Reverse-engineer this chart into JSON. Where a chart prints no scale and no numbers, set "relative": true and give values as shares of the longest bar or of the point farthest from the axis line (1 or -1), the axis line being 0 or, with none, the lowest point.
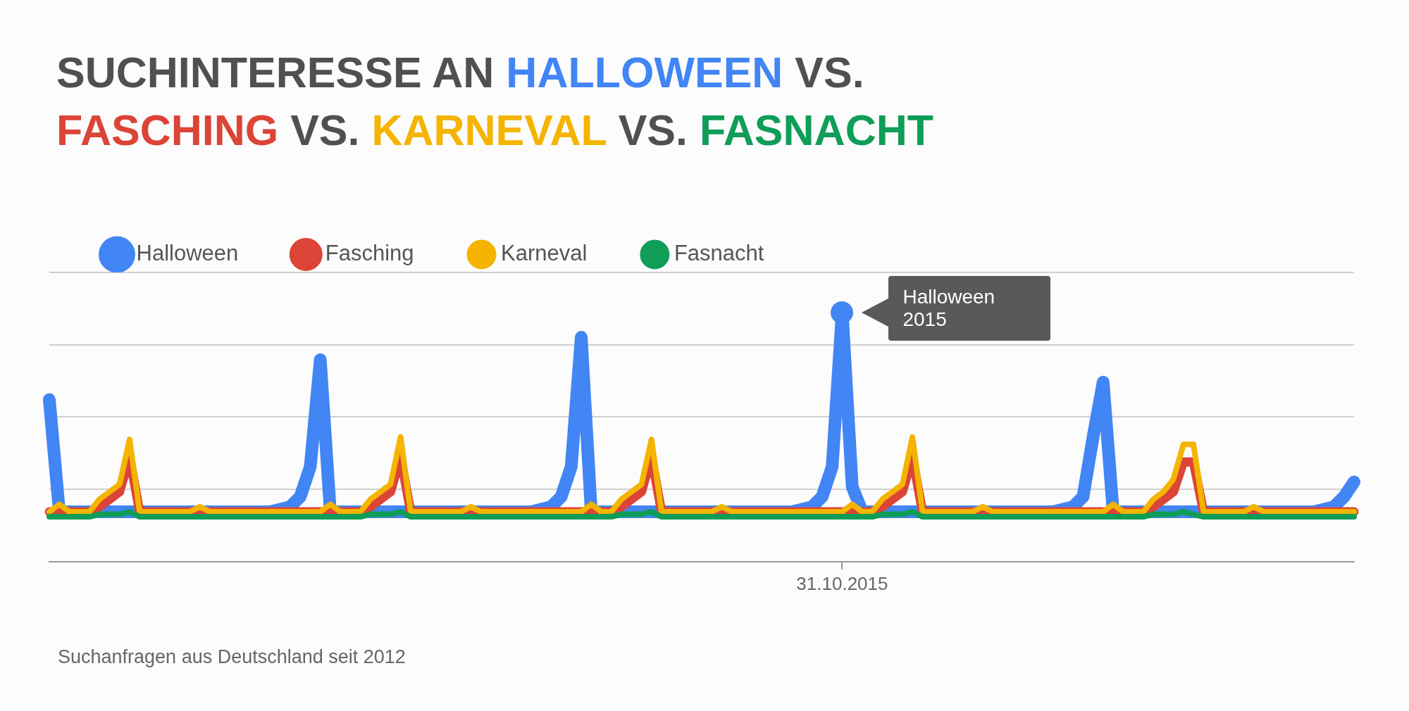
{
  "chart_data": {
    "type": "line",
    "title": "SUCHINTERESSE AN HALLOWEEN VS. FASCHING VS. KARNEVAL VS. FASNACHT",
    "relative": true,
    "legend": "top left",
    "grid": "y",
    "categories": [
      null,
      null,
      null,
      null,
      null,
      null,
      null,
      null,
      null,
      null,
      null,
      null,
      null,
      null,
      null,
      null,
      null,
      null,
      null,
      null,
      null,
      null,
      null,
      null,
      null,
      null,
      null,
      null,
      null,
      null,
      null,
      null,
      null,
      null,
      null,
      null,
      null,
      null,
      null,
      null,
      null,
      null,
      null,
      null,
      null,
      null,
      null,
      null,
      null,
      null,
      null,
      null,
      null,
      null,
      null,
      null,
      null,
      null,
      null,
      null,
      null,
      null,
      null,
      null,
      null,
      null,
      null,
      null,
      null,
      null,
      null,
      null,
      null,
      null,
      null,
      null,
      null,
      null,
      null,
      null,
      null,
      null,
      null,
      null,
      null,
      null,
      null,
      null,
      null,
      null,
      null,
      null,
      null,
      null,
      null,
      null,
      null,
      null,
      null,
      null,
      null,
      null,
      null,
      null,
      null,
      null,
      null,
      null,
      null,
      null,
      null,
      null,
      null,
      null,
      null,
      null,
      null,
      null,
      null,
      null,
      null,
      null,
      null,
      null,
      null,
      null,
      null,
      null,
      null,
      null,
      null
    ],
    "annotations": [
      "Halloween 2015",
      "31.10.2015",
      "Suchanfragen aus Deutschland seit 2012"
    ],
    "series": [
      {
        "name": "Halloween",
        "color": "#4285f4",
        "values": [
          0.65,
          0.2,
          0.2,
          0.2,
          0.2,
          0.2,
          0.2,
          0.2,
          0.2,
          0.2,
          0.2,
          0.2,
          0.2,
          0.2,
          0.2,
          0.2,
          0.2,
          0.2,
          0.2,
          0.2,
          0.2,
          0.2,
          0.2,
          0.21,
          0.22,
          0.26,
          0.38,
          0.81,
          0.2,
          0.2,
          0.2,
          0.2,
          0.2,
          0.2,
          0.2,
          0.2,
          0.2,
          0.2,
          0.2,
          0.2,
          0.2,
          0.2,
          0.2,
          0.2,
          0.2,
          0.2,
          0.2,
          0.2,
          0.2,
          0.21,
          0.22,
          0.26,
          0.38,
          0.9,
          0.2,
          0.2,
          0.2,
          0.2,
          0.2,
          0.2,
          0.2,
          0.2,
          0.2,
          0.2,
          0.2,
          0.2,
          0.2,
          0.2,
          0.2,
          0.2,
          0.2,
          0.2,
          0.2,
          0.2,
          0.2,
          0.21,
          0.22,
          0.26,
          0.38,
          1,
          0.3,
          0.2,
          0.2,
          0.2,
          0.2,
          0.2,
          0.2,
          0.2,
          0.2,
          0.2,
          0.2,
          0.2,
          0.2,
          0.2,
          0.2,
          0.2,
          0.2,
          0.2,
          0.2,
          0.2,
          0.2,
          0.21,
          0.22,
          0.26,
          0.5,
          0.72,
          0.2,
          0.2,
          0.2,
          0.2,
          0.2,
          0.2,
          0.2,
          0.2,
          0.2,
          0.2,
          0.2,
          0.2,
          0.2,
          0.2,
          0.2,
          0.2,
          0.2,
          0.2,
          0.2,
          0.2,
          0.2,
          0.21,
          0.22,
          0.26,
          0.32
        ]
      },
      {
        "name": "Fasching",
        "color": "#db4437",
        "values": [
          0.2,
          0.2,
          0.2,
          0.2,
          0.2,
          0.22,
          0.25,
          0.28,
          0.42,
          0.2,
          0.2,
          0.2,
          0.2,
          0.2,
          0.2,
          0.2,
          0.2,
          0.2,
          0.2,
          0.2,
          0.2,
          0.2,
          0.2,
          0.2,
          0.2,
          0.2,
          0.2,
          0.2,
          0.2,
          0.2,
          0.2,
          0.2,
          0.22,
          0.25,
          0.28,
          0.42,
          0.2,
          0.2,
          0.2,
          0.2,
          0.2,
          0.2,
          0.2,
          0.2,
          0.2,
          0.2,
          0.2,
          0.2,
          0.2,
          0.2,
          0.2,
          0.2,
          0.2,
          0.2,
          0.2,
          0.2,
          0.2,
          0.22,
          0.25,
          0.28,
          0.42,
          0.2,
          0.2,
          0.2,
          0.2,
          0.2,
          0.2,
          0.2,
          0.2,
          0.2,
          0.2,
          0.2,
          0.2,
          0.2,
          0.2,
          0.2,
          0.2,
          0.2,
          0.2,
          0.2,
          0.2,
          0.2,
          0.2,
          0.22,
          0.25,
          0.28,
          0.42,
          0.2,
          0.2,
          0.2,
          0.2,
          0.2,
          0.2,
          0.2,
          0.2,
          0.2,
          0.2,
          0.2,
          0.2,
          0.2,
          0.2,
          0.2,
          0.2,
          0.2,
          0.2,
          0.2,
          0.2,
          0.2,
          0.2,
          0.2,
          0.22,
          0.25,
          0.28,
          0.4,
          0.4,
          0.2,
          0.2,
          0.2,
          0.2,
          0.2,
          0.2,
          0.2,
          0.2,
          0.2,
          0.2,
          0.2,
          0.2,
          0.2,
          0.2,
          0.2,
          0.2
        ]
      },
      {
        "name": "Karneval",
        "color": "#f4b400",
        "values": [
          0.2,
          0.23,
          0.2,
          0.2,
          0.2,
          0.25,
          0.28,
          0.31,
          0.49,
          0.2,
          0.2,
          0.2,
          0.2,
          0.2,
          0.2,
          0.22,
          0.2,
          0.2,
          0.2,
          0.2,
          0.2,
          0.2,
          0.2,
          0.2,
          0.2,
          0.2,
          0.2,
          0.2,
          0.23,
          0.2,
          0.2,
          0.2,
          0.25,
          0.28,
          0.31,
          0.5,
          0.2,
          0.2,
          0.2,
          0.2,
          0.2,
          0.2,
          0.22,
          0.2,
          0.2,
          0.2,
          0.2,
          0.2,
          0.2,
          0.2,
          0.2,
          0.2,
          0.2,
          0.2,
          0.23,
          0.2,
          0.2,
          0.25,
          0.28,
          0.31,
          0.49,
          0.2,
          0.2,
          0.2,
          0.2,
          0.2,
          0.2,
          0.22,
          0.2,
          0.2,
          0.2,
          0.2,
          0.2,
          0.2,
          0.2,
          0.2,
          0.2,
          0.2,
          0.2,
          0.2,
          0.23,
          0.2,
          0.2,
          0.25,
          0.28,
          0.31,
          0.5,
          0.2,
          0.2,
          0.2,
          0.2,
          0.2,
          0.2,
          0.22,
          0.2,
          0.2,
          0.2,
          0.2,
          0.2,
          0.2,
          0.2,
          0.2,
          0.2,
          0.2,
          0.2,
          0.2,
          0.23,
          0.2,
          0.2,
          0.2,
          0.25,
          0.28,
          0.33,
          0.47,
          0.47,
          0.2,
          0.2,
          0.2,
          0.2,
          0.2,
          0.22,
          0.2,
          0.2,
          0.2,
          0.2,
          0.2,
          0.2,
          0.2,
          0.2,
          0.2,
          0.2
        ]
      },
      {
        "name": "Fasnacht",
        "color": "#0f9d58",
        "values": [
          0.18,
          0.18,
          0.18,
          0.18,
          0.18,
          0.19,
          0.19,
          0.19,
          0.2,
          0.18,
          0.18,
          0.18,
          0.18,
          0.18,
          0.18,
          0.18,
          0.18,
          0.18,
          0.18,
          0.18,
          0.18,
          0.18,
          0.18,
          0.18,
          0.18,
          0.18,
          0.18,
          0.18,
          0.18,
          0.18,
          0.18,
          0.18,
          0.19,
          0.19,
          0.19,
          0.2,
          0.18,
          0.18,
          0.18,
          0.18,
          0.18,
          0.18,
          0.18,
          0.18,
          0.18,
          0.18,
          0.18,
          0.18,
          0.18,
          0.18,
          0.18,
          0.18,
          0.18,
          0.18,
          0.18,
          0.18,
          0.18,
          0.19,
          0.19,
          0.19,
          0.2,
          0.18,
          0.18,
          0.18,
          0.18,
          0.18,
          0.18,
          0.18,
          0.18,
          0.18,
          0.18,
          0.18,
          0.18,
          0.18,
          0.18,
          0.18,
          0.18,
          0.18,
          0.18,
          0.18,
          0.18,
          0.18,
          0.18,
          0.19,
          0.19,
          0.19,
          0.2,
          0.18,
          0.18,
          0.18,
          0.18,
          0.18,
          0.18,
          0.18,
          0.18,
          0.18,
          0.18,
          0.18,
          0.18,
          0.18,
          0.18,
          0.18,
          0.18,
          0.18,
          0.18,
          0.18,
          0.18,
          0.18,
          0.18,
          0.18,
          0.19,
          0.19,
          0.19,
          0.2,
          0.19,
          0.18,
          0.18,
          0.18,
          0.18,
          0.18,
          0.18,
          0.18,
          0.18,
          0.18,
          0.18,
          0.18,
          0.18,
          0.18,
          0.18,
          0.18,
          0.18
        ]
      }
    ]
  }
}
